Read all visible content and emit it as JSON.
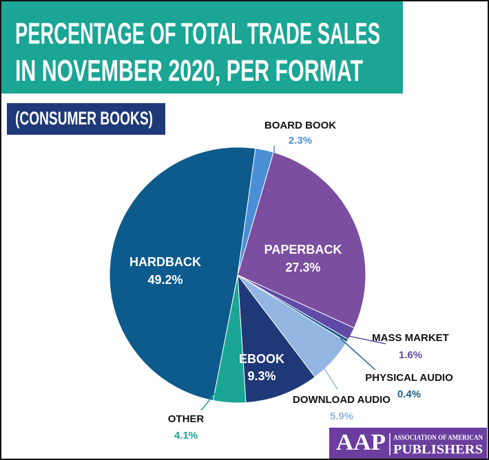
{
  "chart_data": {
    "type": "pie",
    "title": [
      "PERCENTAGE OF TOTAL TRADE SALES",
      "IN NOVEMBER 2020, PER FORMAT"
    ],
    "subtitle": "(CONSUMER BOOKS)",
    "categories": [
      "BOARD BOOK",
      "PAPERBACK",
      "MASS MARKET",
      "PHYSICAL AUDIO",
      "DOWNLOAD AUDIO",
      "EBOOK",
      "OTHER",
      "HARDBACK"
    ],
    "values": [
      2.3,
      27.3,
      1.6,
      0.4,
      5.9,
      9.3,
      4.1,
      49.2
    ],
    "value_labels": [
      "2.3%",
      "27.3%",
      "1.6%",
      "0.4%",
      "5.9%",
      "9.3%",
      "4.1%",
      "49.2%"
    ],
    "colors": [
      "#4a8fd6",
      "#7b4ea0",
      "#5f4aa6",
      "#1a5d8f",
      "#93b5e2",
      "#1f3877",
      "#1aa594",
      "#0d5a8c"
    ]
  },
  "logo": {
    "mark": "AAP",
    "line1": "ASSOCIATION OF AMERICAN",
    "line2": "PUBLISHERS"
  }
}
